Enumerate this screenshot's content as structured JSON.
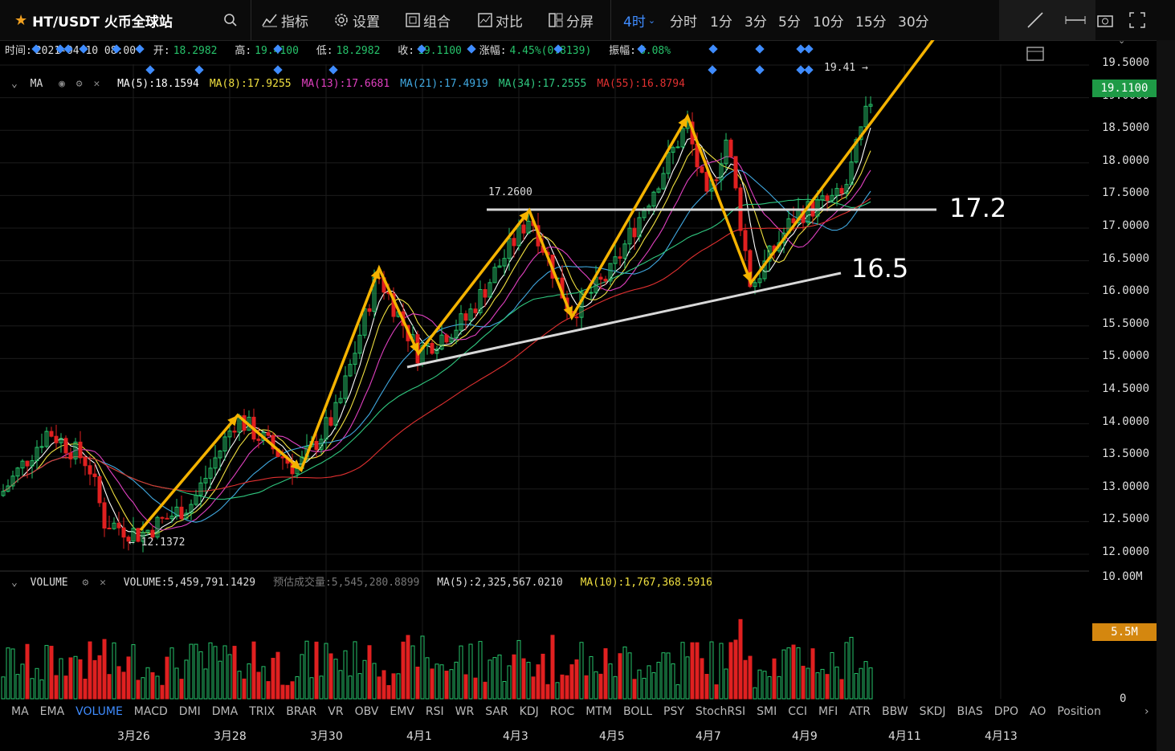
{
  "topbar": {
    "pair": "HT/USDT 火币全球站",
    "menu": [
      "指标",
      "设置",
      "组合",
      "对比",
      "分屏"
    ],
    "intervals": [
      "4时",
      "分时",
      "1分",
      "3分",
      "5分",
      "10分",
      "15分",
      "30分"
    ],
    "active_interval": "4时"
  },
  "info": {
    "time_label": "时间:",
    "time": "2021-04-10 08:00",
    "open_label": "开:",
    "open": "18.2982",
    "high_label": "高:",
    "high": "19.4100",
    "low_label": "低:",
    "low": "18.2982",
    "close_label": "收:",
    "close": "19.1100",
    "change_label": "涨幅:",
    "change": "4.45%(0.8139)",
    "amp_label": "振幅:",
    "amp": "6.08%"
  },
  "ma_legend": {
    "name": "MA",
    "items": [
      {
        "label": "MA(5):18.1594",
        "color": "#ffffff"
      },
      {
        "label": "MA(8):17.9255",
        "color": "#f0e040"
      },
      {
        "label": "MA(13):17.6681",
        "color": "#e040c0"
      },
      {
        "label": "MA(21):17.4919",
        "color": "#40a8e0"
      },
      {
        "label": "MA(34):17.2555",
        "color": "#30c880"
      },
      {
        "label": "MA(55):16.8794",
        "color": "#e03030"
      }
    ]
  },
  "vol_legend": {
    "name": "VOLUME",
    "volume": "VOLUME:5,459,791.1429",
    "estimate": "预估成交量:5,545,280.8899",
    "ma5": "MA(5):2,325,567.0210",
    "ma10": "MA(10):1,767,368.5916"
  },
  "price_axis": [
    "19.5000",
    "19.0000",
    "18.5000",
    "18.0000",
    "17.5000",
    "17.0000",
    "16.5000",
    "16.0000",
    "15.5000",
    "15.0000",
    "14.5000",
    "14.0000",
    "13.5000",
    "13.0000",
    "12.5000",
    "12.0000"
  ],
  "current_price": "19.1100",
  "vol_axis": [
    "10.00M",
    "0"
  ],
  "vol_current": "5.5M",
  "chart_labels": {
    "high": "19.41 →",
    "low": "← 12.1372",
    "level": "17.2600"
  },
  "annotations": {
    "resistance": "17.2",
    "support": "16.5"
  },
  "indicators": [
    "MA",
    "EMA",
    "VOLUME",
    "MACD",
    "DMI",
    "DMA",
    "TRIX",
    "BRAR",
    "VR",
    "OBV",
    "EMV",
    "RSI",
    "WR",
    "SAR",
    "KDJ",
    "ROC",
    "MTM",
    "BOLL",
    "PSY",
    "StochRSI",
    "SMI",
    "CCI",
    "MFI",
    "ATR",
    "BBW",
    "SKDJ",
    "BIAS",
    "DPO",
    "AO",
    "Position"
  ],
  "active_indicator": "VOLUME",
  "x_axis": [
    "3月26",
    "3月28",
    "3月30",
    "4月1",
    "4月3",
    "4月5",
    "4月7",
    "4月9",
    "4月11",
    "4月13"
  ],
  "colors": {
    "up": "#26c26a",
    "down": "#e02020",
    "accent": "#3f8cff",
    "arrow": "#f5b300"
  }
}
